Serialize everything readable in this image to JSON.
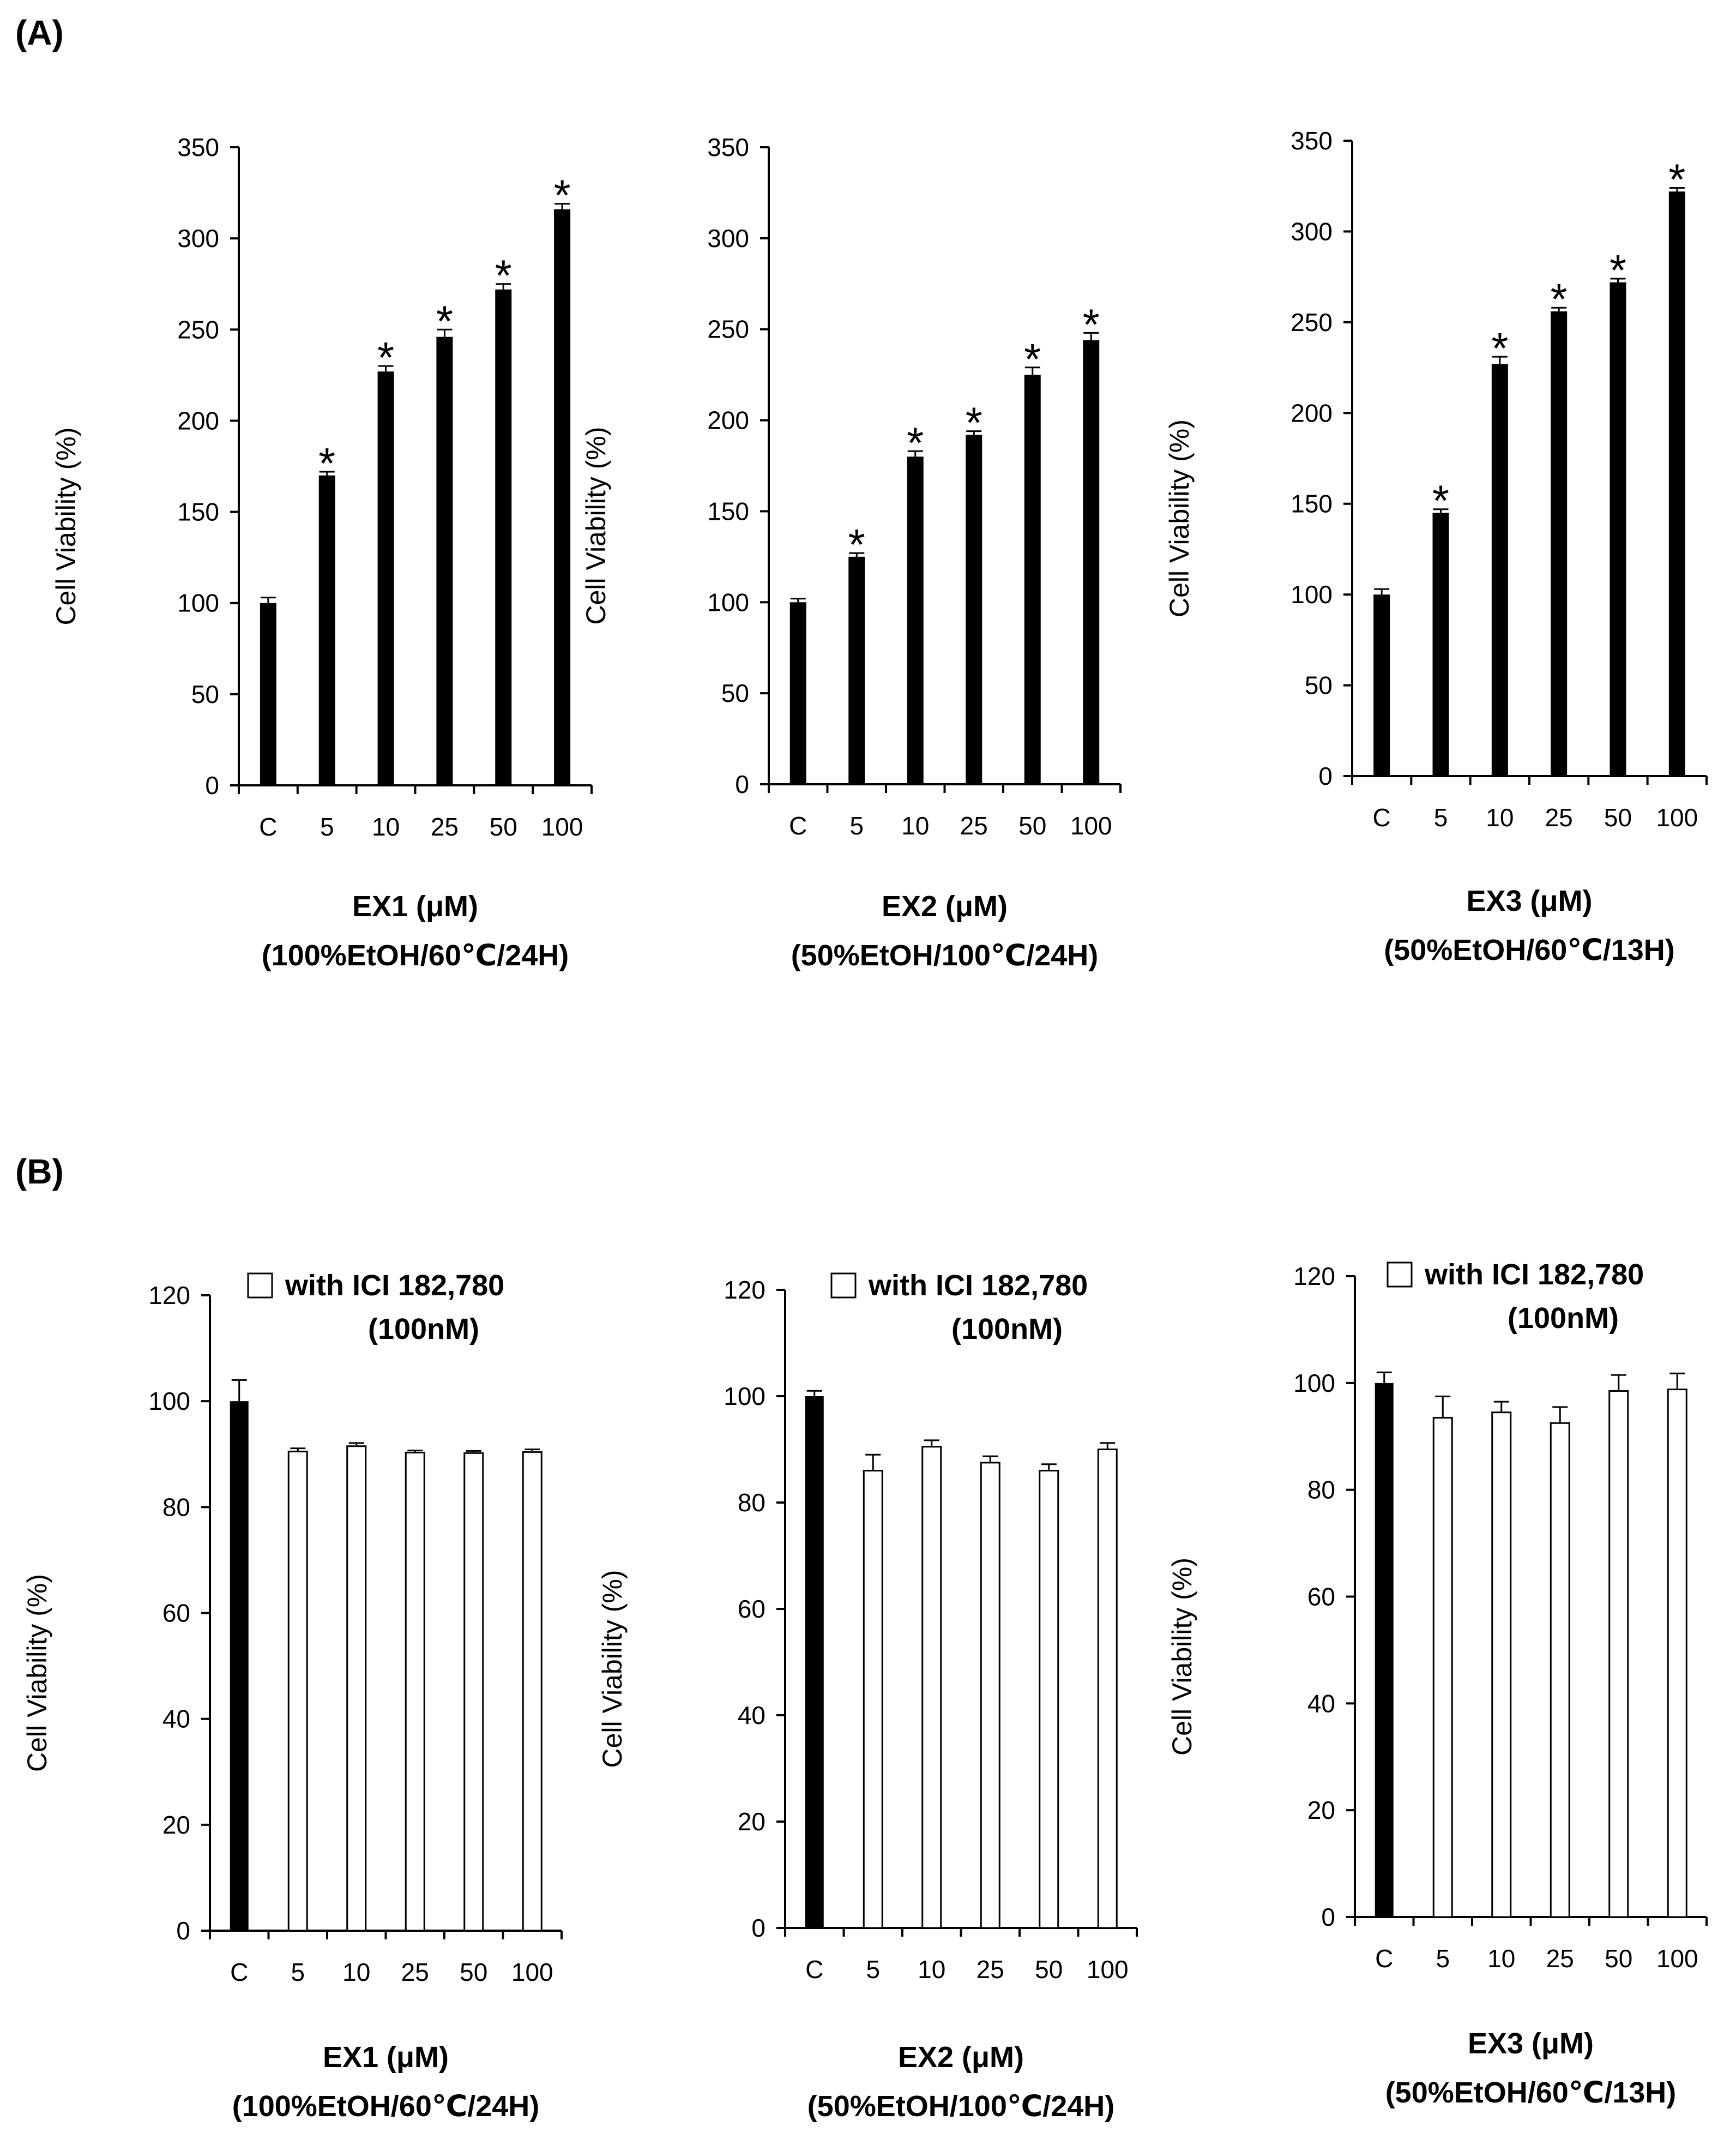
{
  "panels": [
    {
      "label": "(A)"
    },
    {
      "label": "(B)"
    }
  ],
  "chart_data": [
    {
      "type": "bar",
      "panel": "(A)",
      "categories": [
        "C",
        "5",
        "10",
        "25",
        "50",
        "100"
      ],
      "values": [
        100,
        170,
        227,
        246,
        272,
        316
      ],
      "errors": [
        3,
        2,
        3,
        4,
        3,
        3
      ],
      "significance": [
        "",
        "*",
        "*",
        "*",
        "*",
        "*"
      ],
      "bar_colors": [
        "#000000",
        "#000000",
        "#000000",
        "#000000",
        "#000000",
        "#000000"
      ],
      "ylabel": "Cell Viability (%)",
      "xlabel": "EX1 (μM)",
      "xlabel2": "(100%EtOH/60℃/24H)",
      "ylim": [
        0,
        350
      ],
      "yticks": [
        0,
        50,
        100,
        150,
        200,
        250,
        300,
        350
      ],
      "legend": []
    },
    {
      "type": "bar",
      "panel": "(A)",
      "categories": [
        "C",
        "5",
        "10",
        "25",
        "50",
        "100"
      ],
      "values": [
        100,
        125,
        180,
        192,
        225,
        244
      ],
      "errors": [
        2,
        2,
        3,
        2,
        4,
        4
      ],
      "significance": [
        "",
        "*",
        "*",
        "*",
        "*",
        "*"
      ],
      "bar_colors": [
        "#000000",
        "#000000",
        "#000000",
        "#000000",
        "#000000",
        "#000000"
      ],
      "ylabel": "Cell Viability (%)",
      "xlabel": "EX2 (μM)",
      "xlabel2": "(50%EtOH/100℃/24H)",
      "ylim": [
        0,
        350
      ],
      "yticks": [
        0,
        50,
        100,
        150,
        200,
        250,
        300,
        350
      ],
      "legend": []
    },
    {
      "type": "bar",
      "panel": "(A)",
      "categories": [
        "C",
        "5",
        "10",
        "25",
        "50",
        "100"
      ],
      "values": [
        100,
        145,
        227,
        256,
        272,
        322
      ],
      "errors": [
        3,
        2,
        4,
        2,
        2,
        2
      ],
      "significance": [
        "",
        "*",
        "*",
        "*",
        "*",
        "*"
      ],
      "bar_colors": [
        "#000000",
        "#000000",
        "#000000",
        "#000000",
        "#000000",
        "#000000"
      ],
      "ylabel": "Cell Viability (%)",
      "xlabel": "EX3 (μM)",
      "xlabel2": "(50%EtOH/60℃/13H)",
      "ylim": [
        0,
        350
      ],
      "yticks": [
        0,
        50,
        100,
        150,
        200,
        250,
        300,
        350
      ],
      "legend": []
    },
    {
      "type": "bar",
      "panel": "(B)",
      "categories": [
        "C",
        "5",
        "10",
        "25",
        "50",
        "100"
      ],
      "values": [
        100,
        90.5,
        91.5,
        90.3,
        90.2,
        90.4
      ],
      "errors": [
        4,
        0.6,
        0.6,
        0.4,
        0.4,
        0.5
      ],
      "significance": [
        "",
        "",
        "",
        "",
        "",
        ""
      ],
      "bar_colors": [
        "#000000",
        "#ffffff",
        "#ffffff",
        "#ffffff",
        "#ffffff",
        "#ffffff"
      ],
      "ylabel": "Cell Viability (%)",
      "xlabel": "EX1 (μM)",
      "xlabel2": "(100%EtOH/60℃/24H)",
      "ylim": [
        0,
        120
      ],
      "yticks": [
        0,
        20,
        40,
        60,
        80,
        100,
        120
      ],
      "legend": [
        "with ICI 182,780",
        "(100nM)"
      ]
    },
    {
      "type": "bar",
      "panel": "(B)",
      "categories": [
        "C",
        "5",
        "10",
        "25",
        "50",
        "100"
      ],
      "values": [
        100,
        86,
        90.5,
        87.5,
        86,
        90
      ],
      "errors": [
        1,
        3,
        1.2,
        1.2,
        1.2,
        1.2
      ],
      "significance": [
        "",
        "",
        "",
        "",
        "",
        ""
      ],
      "bar_colors": [
        "#000000",
        "#ffffff",
        "#ffffff",
        "#ffffff",
        "#ffffff",
        "#ffffff"
      ],
      "ylabel": "Cell Viability (%)",
      "xlabel": "EX2 (μM)",
      "xlabel2": "(50%EtOH/100℃/24H)",
      "ylim": [
        0,
        120
      ],
      "yticks": [
        0,
        20,
        40,
        60,
        80,
        100,
        120
      ],
      "legend": [
        "with ICI 182,780",
        "(100nM)"
      ]
    },
    {
      "type": "bar",
      "panel": "(B)",
      "categories": [
        "C",
        "5",
        "10",
        "25",
        "50",
        "100"
      ],
      "values": [
        100,
        93.5,
        94.5,
        92.5,
        98.5,
        98.8
      ],
      "errors": [
        2,
        4,
        2,
        3,
        3,
        3
      ],
      "significance": [
        "",
        "",
        "",
        "",
        "",
        ""
      ],
      "bar_colors": [
        "#000000",
        "#ffffff",
        "#ffffff",
        "#ffffff",
        "#ffffff",
        "#ffffff"
      ],
      "ylabel": "Cell Viability (%)",
      "xlabel": "EX3 (μM)",
      "xlabel2": "(50%EtOH/60℃/13H)",
      "ylim": [
        0,
        120
      ],
      "yticks": [
        0,
        20,
        40,
        60,
        80,
        100,
        120
      ],
      "legend": [
        "with ICI 182,780",
        "(100nM)"
      ]
    }
  ]
}
